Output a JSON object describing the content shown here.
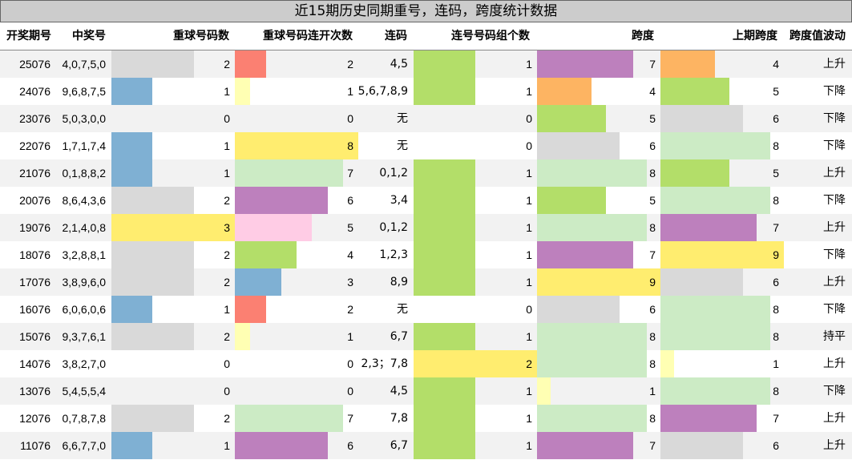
{
  "title": "近15期历史同期重号，连码，跨度统计数据",
  "headers": {
    "period": "开奖期号",
    "numbers": "中奖号",
    "repeat_count": "重球号码数",
    "repeat_streak": "重球号码连开次数",
    "consecutive": "连码",
    "consec_groups": "连号号码组个数",
    "span": "跨度",
    "prev_span": "上期跨度",
    "trend": "跨度值波动"
  },
  "colors": {
    "0": "#ffffff",
    "1": "#7fb0d3",
    "2": "#d9d9d9",
    "3": "#ffed6f",
    "4": "#b3de69",
    "5": "#ffcce5",
    "6": "#bd80bd",
    "7": "#ccebc5",
    "8": "#ffed6f",
    "9": "#ffed6f",
    "c1": "#b3de69",
    "c2": "#ffed6f",
    "red": "#fb8072",
    "orange": "#fdb462",
    "lightyellow": "#ffffb3"
  },
  "chart_data": {
    "type": "table",
    "columns": [
      "开奖期号",
      "中奖号",
      "重球号码数",
      "重球号码连开次数",
      "连码",
      "连号号码组个数",
      "跨度",
      "上期跨度",
      "跨度值波动"
    ],
    "max": {
      "repeat_count": 3,
      "repeat_streak": 8,
      "consec_groups": 2,
      "span": 9,
      "prev_span": 9
    },
    "rows": [
      {
        "period": "25076",
        "numbers": "4,0,7,5,0",
        "repeat_count": 2,
        "repeat_streak": 2,
        "consecutive": "4,5",
        "consec_groups": 1,
        "span": 7,
        "prev_span": 4,
        "trend": "上升"
      },
      {
        "period": "24076",
        "numbers": "9,6,8,7,5",
        "repeat_count": 1,
        "repeat_streak": 1,
        "consecutive": "5,6,7,8,9",
        "consec_groups": 1,
        "span": 4,
        "prev_span": 5,
        "trend": "下降"
      },
      {
        "period": "23076",
        "numbers": "5,0,3,0,0",
        "repeat_count": 0,
        "repeat_streak": 0,
        "consecutive": "无",
        "consec_groups": 0,
        "span": 5,
        "prev_span": 6,
        "trend": "下降"
      },
      {
        "period": "22076",
        "numbers": "1,7,1,7,4",
        "repeat_count": 1,
        "repeat_streak": 8,
        "consecutive": "无",
        "consec_groups": 0,
        "span": 6,
        "prev_span": 8,
        "trend": "下降"
      },
      {
        "period": "21076",
        "numbers": "0,1,8,8,2",
        "repeat_count": 1,
        "repeat_streak": 7,
        "consecutive": "0,1,2",
        "consec_groups": 1,
        "span": 8,
        "prev_span": 5,
        "trend": "上升"
      },
      {
        "period": "20076",
        "numbers": "8,6,4,3,6",
        "repeat_count": 2,
        "repeat_streak": 6,
        "consecutive": "3,4",
        "consec_groups": 1,
        "span": 5,
        "prev_span": 8,
        "trend": "下降"
      },
      {
        "period": "19076",
        "numbers": "2,1,4,0,8",
        "repeat_count": 3,
        "repeat_streak": 5,
        "consecutive": "0,1,2",
        "consec_groups": 1,
        "span": 8,
        "prev_span": 7,
        "trend": "上升"
      },
      {
        "period": "18076",
        "numbers": "3,2,8,8,1",
        "repeat_count": 2,
        "repeat_streak": 4,
        "consecutive": "1,2,3",
        "consec_groups": 1,
        "span": 7,
        "prev_span": 9,
        "trend": "下降"
      },
      {
        "period": "17076",
        "numbers": "3,8,9,6,0",
        "repeat_count": 2,
        "repeat_streak": 3,
        "consecutive": "8,9",
        "consec_groups": 1,
        "span": 9,
        "prev_span": 6,
        "trend": "上升"
      },
      {
        "period": "16076",
        "numbers": "6,0,6,0,6",
        "repeat_count": 1,
        "repeat_streak": 2,
        "consecutive": "无",
        "consec_groups": 0,
        "span": 6,
        "prev_span": 8,
        "trend": "下降"
      },
      {
        "period": "15076",
        "numbers": "9,3,7,6,1",
        "repeat_count": 2,
        "repeat_streak": 1,
        "consecutive": "6,7",
        "consec_groups": 1,
        "span": 8,
        "prev_span": 8,
        "trend": "持平"
      },
      {
        "period": "14076",
        "numbers": "3,8,2,7,0",
        "repeat_count": 0,
        "repeat_streak": 0,
        "consecutive": "2,3；7,8",
        "consec_groups": 2,
        "span": 8,
        "prev_span": 1,
        "trend": "上升"
      },
      {
        "period": "13076",
        "numbers": "5,4,5,5,4",
        "repeat_count": 0,
        "repeat_streak": 0,
        "consecutive": "4,5",
        "consec_groups": 1,
        "span": 1,
        "prev_span": 8,
        "trend": "下降"
      },
      {
        "period": "12076",
        "numbers": "0,7,8,7,8",
        "repeat_count": 2,
        "repeat_streak": 7,
        "consecutive": "7,8",
        "consec_groups": 1,
        "span": 8,
        "prev_span": 7,
        "trend": "上升"
      },
      {
        "period": "11076",
        "numbers": "6,6,7,7,0",
        "repeat_count": 1,
        "repeat_streak": 6,
        "consecutive": "6,7",
        "consec_groups": 1,
        "span": 7,
        "prev_span": 6,
        "trend": "上升"
      }
    ]
  }
}
